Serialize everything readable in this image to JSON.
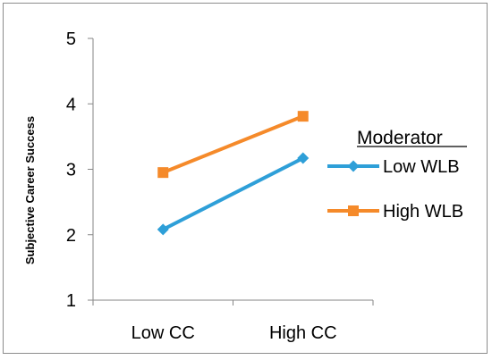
{
  "chart_data": {
    "type": "line",
    "categories": [
      "Low CC",
      "High CC"
    ],
    "series": [
      {
        "name": "Low WLB",
        "values": [
          2.08,
          3.17
        ],
        "color": "#2E9FD8",
        "marker": "diamond"
      },
      {
        "name": "High WLB",
        "values": [
          2.95,
          3.81
        ],
        "color": "#F58A2A",
        "marker": "square"
      }
    ],
    "title": "",
    "xlabel": "",
    "ylabel": "Subjective Career Success",
    "ylim": [
      1,
      5
    ],
    "yticks": [
      "1",
      "2",
      "3",
      "4",
      "5"
    ],
    "grid": false,
    "legend": {
      "title": "Moderator",
      "position": "right"
    }
  }
}
